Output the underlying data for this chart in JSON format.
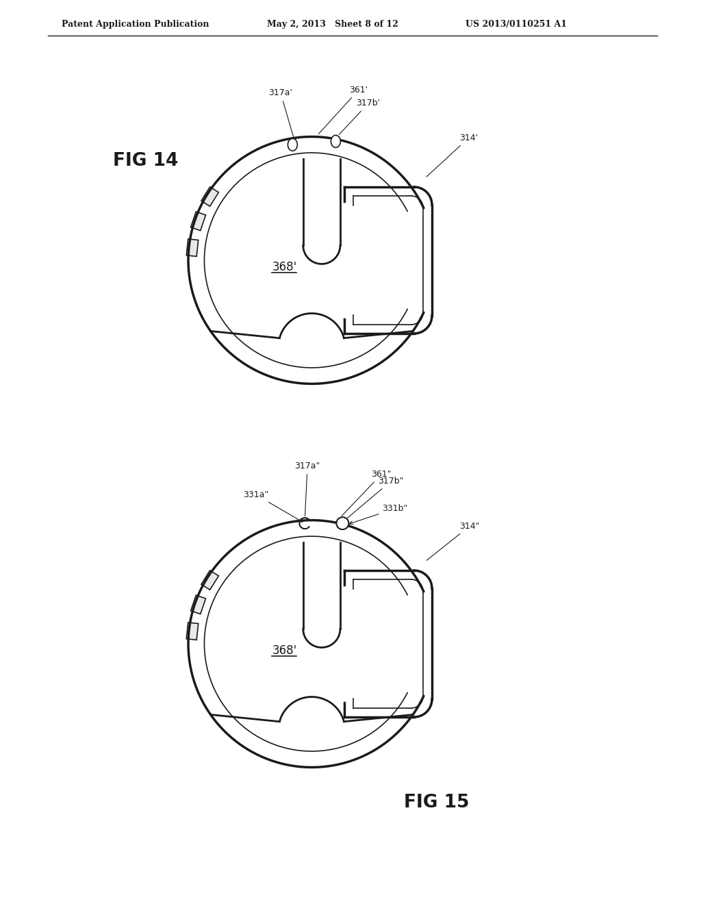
{
  "bg_color": "#ffffff",
  "line_color": "#1a1a1a",
  "header_left": "Patent Application Publication",
  "header_mid": "May 2, 2013   Sheet 8 of 12",
  "header_right": "US 2013/0110251 A1",
  "fig14_label": "FIG 14",
  "fig15_label": "FIG 15",
  "fig14_368_label": "368'",
  "fig15_368_label": "368'",
  "label_317a_prime": "317a'",
  "label_317b_prime": "317b'",
  "label_361_prime": "361'",
  "label_314_prime": "314'",
  "label_317a_dbl": "317a\"",
  "label_317b_dbl": "317b\"",
  "label_361_dbl": "361\"",
  "label_314_dbl": "314\"",
  "label_331a_dbl": "331a\"",
  "label_331b_dbl": "331b\""
}
